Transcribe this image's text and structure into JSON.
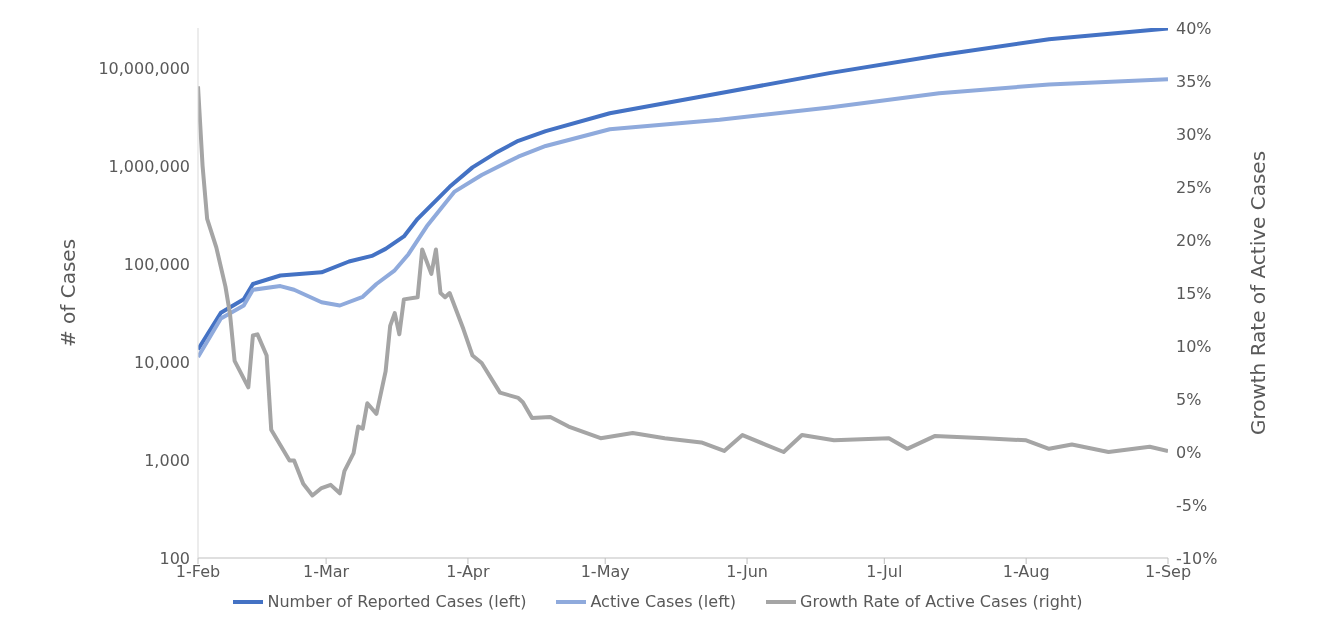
{
  "chart_data": {
    "type": "line",
    "ylabel": "# of Cases",
    "y2label": "Growth Rate of Active Cases",
    "log": "y",
    "legend": "bottom",
    "marker": "none",
    "line_style": "solid",
    "xlim": [
      "--02-01",
      "--09-01"
    ],
    "xticks": [
      {
        "value": "--02-01",
        "label": "1-Feb"
      },
      {
        "value": "--03-01",
        "label": "1-Mar"
      },
      {
        "value": "--04-01",
        "label": "1-Apr"
      },
      {
        "value": "--05-01",
        "label": "1-May"
      },
      {
        "value": "--06-01",
        "label": "1-Jun"
      },
      {
        "value": "--07-01",
        "label": "1-Jul"
      },
      {
        "value": "--08-01",
        "label": "1-Aug"
      },
      {
        "value": "--09-01",
        "label": "1-Sep"
      }
    ],
    "ylim": [
      100,
      26000000
    ],
    "yticks": [
      {
        "value": 100,
        "label": "100"
      },
      {
        "value": 1000,
        "label": "1,000"
      },
      {
        "value": 10000,
        "label": "10,000"
      },
      {
        "value": 100000,
        "label": "100,000"
      },
      {
        "value": 1000000,
        "label": "1,000,000"
      },
      {
        "value": 10000000,
        "label": "10,000,000"
      }
    ],
    "y2lim": [
      -10,
      40
    ],
    "y2ticks": [
      {
        "value": -10,
        "label": "-10%"
      },
      {
        "value": -5,
        "label": "-5%"
      },
      {
        "value": 0,
        "label": "0%"
      },
      {
        "value": 5,
        "label": "5%"
      },
      {
        "value": 10,
        "label": "10%"
      },
      {
        "value": 15,
        "label": "15%"
      },
      {
        "value": 20,
        "label": "20%"
      },
      {
        "value": 25,
        "label": "25%"
      },
      {
        "value": 30,
        "label": "30%"
      },
      {
        "value": 35,
        "label": "35%"
      },
      {
        "value": 40,
        "label": "40%"
      }
    ],
    "series": [
      {
        "name": "Number of Reported Cases (left)",
        "color": "#4472c4",
        "x": [
          "--02-01",
          "--02-06",
          "--02-11",
          "--02-13",
          "--02-19",
          "--02-28",
          "--03-06",
          "--03-11",
          "--03-14",
          "--03-18",
          "--03-21",
          "--03-28",
          "--04-02",
          "--04-07",
          "--04-12",
          "--04-18",
          "--05-02",
          "--05-26",
          "--06-19",
          "--07-13",
          "--08-06",
          "--09-01"
        ],
        "values": [
          13500,
          32000,
          44000,
          63000,
          77000,
          83000,
          107000,
          122000,
          144000,
          193000,
          292000,
          620000,
          980000,
          1370000,
          1830000,
          2300000,
          3500000,
          5600000,
          9000000,
          13700000,
          20000000,
          25700000
        ]
      },
      {
        "name": "Active Cases (left)",
        "color": "#8faadc",
        "x": [
          "--02-01",
          "--02-06",
          "--02-11",
          "--02-13",
          "--02-19",
          "--02-22",
          "--02-28",
          "--03-04",
          "--03-09",
          "--03-12",
          "--03-16",
          "--03-19",
          "--03-23",
          "--03-29",
          "--04-04",
          "--04-12",
          "--04-18",
          "--05-02",
          "--05-26",
          "--06-19",
          "--07-13",
          "--08-06",
          "--09-01"
        ],
        "values": [
          11300,
          28000,
          38000,
          55000,
          60000,
          55000,
          41000,
          38000,
          46600,
          63000,
          87000,
          127000,
          245000,
          550000,
          820000,
          1260000,
          1620000,
          2400000,
          3000000,
          4000000,
          5600000,
          6900000,
          7800000
        ]
      },
      {
        "name": "Growth Rate of Active Cases (right)",
        "color": "#a5a5a5",
        "axis": "y2",
        "x": [
          "--02-01",
          "--02-02",
          "--02-03",
          "--02-05",
          "--02-07",
          "--02-08",
          "--02-09",
          "--02-12",
          "--02-13",
          "--02-14",
          "--02-16",
          "--02-17",
          "--02-21",
          "--02-22",
          "--02-24",
          "--02-26",
          "--02-28",
          "--03-02",
          "--03-04",
          "--03-05",
          "--03-07",
          "--03-08",
          "--03-09",
          "--03-10",
          "--03-12",
          "--03-14",
          "--03-15",
          "--03-16",
          "--03-17",
          "--03-18",
          "--03-21",
          "--03-22",
          "--03-24",
          "--03-25",
          "--03-26",
          "--03-27",
          "--03-28",
          "--03-31",
          "--04-02",
          "--04-04",
          "--04-08",
          "--04-12",
          "--04-13",
          "--04-15",
          "--04-19",
          "--04-23",
          "--04-30",
          "--05-07",
          "--05-14",
          "--05-22",
          "--05-27",
          "--05-31",
          "--06-05",
          "--06-09",
          "--06-13",
          "--06-20",
          "--07-02",
          "--07-06",
          "--07-12",
          "--07-23",
          "--08-01",
          "--08-06",
          "--08-11",
          "--08-19",
          "--08-28",
          "--09-01"
        ],
        "values": [
          34.5,
          27,
          22,
          19.3,
          15.6,
          13,
          8.6,
          6.1,
          11,
          11.1,
          9.1,
          2.1,
          -0.8,
          -0.8,
          -3,
          -4.1,
          -3.4,
          -3.1,
          -3.9,
          -1.8,
          -0.1,
          2.4,
          2.2,
          4.6,
          3.6,
          7.6,
          11.9,
          13.1,
          11.1,
          14.4,
          14.6,
          19.1,
          16.8,
          19.1,
          15,
          14.6,
          15,
          11.6,
          9.1,
          8.4,
          5.6,
          5.1,
          4.7,
          3.2,
          3.3,
          2.4,
          1.3,
          1.8,
          1.3,
          0.9,
          0.1,
          1.6,
          0.7,
          0,
          1.6,
          1.1,
          1.3,
          0.3,
          1.5,
          1.3,
          1.1,
          0.3,
          0.7,
          0,
          0.5,
          0.1
        ]
      }
    ]
  }
}
